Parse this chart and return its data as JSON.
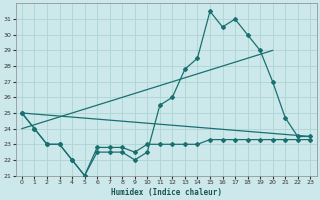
{
  "xlabel": "Humidex (Indice chaleur)",
  "background_color": "#cce8ea",
  "grid_color": "#aed4d6",
  "line_color": "#1a7070",
  "xlim": [
    -0.5,
    23.5
  ],
  "ylim": [
    21,
    32
  ],
  "xticks": [
    0,
    1,
    2,
    3,
    4,
    5,
    6,
    7,
    8,
    9,
    10,
    11,
    12,
    13,
    14,
    15,
    16,
    17,
    18,
    19,
    20,
    21,
    22,
    23
  ],
  "yticks": [
    21,
    22,
    23,
    24,
    25,
    26,
    27,
    28,
    29,
    30,
    31
  ],
  "series1_x": [
    0,
    1,
    2,
    3,
    4,
    5,
    6,
    7,
    8,
    9,
    10,
    11,
    12,
    13,
    14,
    15,
    16,
    17,
    18,
    19,
    20,
    21,
    22,
    23
  ],
  "series1_y": [
    25,
    24,
    23,
    23,
    22,
    21,
    22.5,
    22.5,
    22.5,
    22,
    22.5,
    25.5,
    26,
    27.8,
    28.5,
    31.5,
    30.5,
    31,
    30,
    29,
    27,
    24.7,
    23.5,
    23.5
  ],
  "series2_x": [
    0,
    1,
    2,
    3,
    4,
    5,
    6,
    7,
    8,
    9,
    10,
    11,
    12,
    13,
    14,
    15,
    16,
    17,
    18,
    19,
    20,
    21,
    22,
    23
  ],
  "series2_y": [
    25,
    24,
    23,
    23,
    22,
    21,
    22.8,
    22.8,
    22.8,
    22.5,
    23,
    23,
    23,
    23,
    23,
    23.3,
    23.3,
    23.3,
    23.3,
    23.3,
    23.3,
    23.3,
    23.3,
    23.3
  ],
  "series3_x": [
    0,
    23
  ],
  "series3_y": [
    25,
    23.5
  ],
  "series4_x": [
    0,
    20
  ],
  "series4_y": [
    24,
    29
  ]
}
